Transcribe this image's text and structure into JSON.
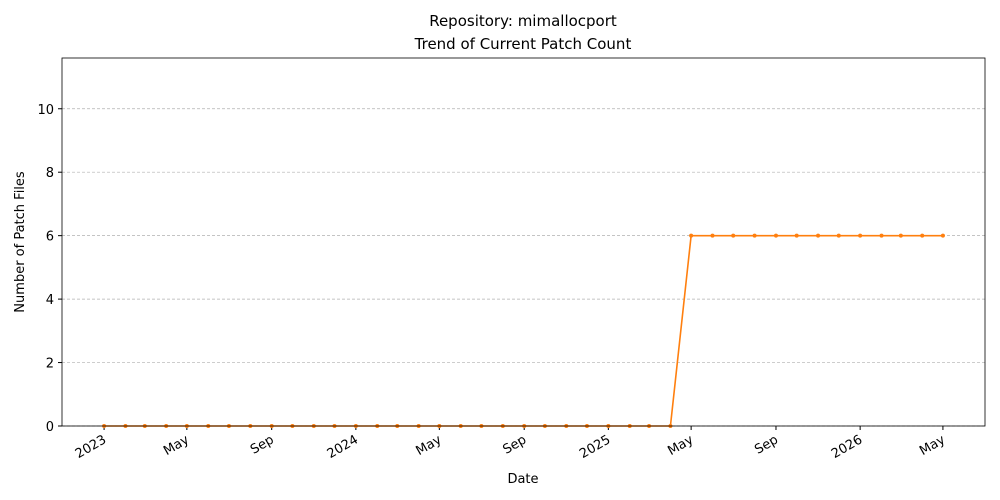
{
  "chart_data": {
    "type": "line",
    "title": "Repository: mimallocport",
    "subtitle": "Trend of Current Patch Count",
    "x_label": "Date",
    "y_label": "Number of Patch Files",
    "x": [
      "2023-01",
      "2023-02",
      "2023-03",
      "2023-04",
      "2023-05",
      "2023-06",
      "2023-07",
      "2023-08",
      "2023-09",
      "2023-10",
      "2023-11",
      "2023-12",
      "2024-01",
      "2024-02",
      "2024-03",
      "2024-04",
      "2024-05",
      "2024-06",
      "2024-07",
      "2024-08",
      "2024-09",
      "2024-10",
      "2024-11",
      "2024-12",
      "2025-01",
      "2025-02",
      "2025-03",
      "2025-04",
      "2025-05",
      "2025-06",
      "2025-07",
      "2025-08",
      "2025-09",
      "2025-10",
      "2025-11",
      "2025-12",
      "2026-01",
      "2026-02",
      "2026-03",
      "2026-04",
      "2026-05"
    ],
    "series": [
      {
        "name": "Patch Count",
        "color": "#ff7f0e",
        "values": [
          0,
          0,
          0,
          0,
          0,
          0,
          0,
          0,
          0,
          0,
          0,
          0,
          0,
          0,
          0,
          0,
          0,
          0,
          0,
          0,
          0,
          0,
          0,
          0,
          0,
          0,
          0,
          0,
          6,
          6,
          6,
          6,
          6,
          6,
          6,
          6,
          6,
          6,
          6,
          6,
          6
        ]
      }
    ],
    "xlim": [
      "2022-11-01",
      "2026-07-01"
    ],
    "xticks": [
      {
        "value": "2023-01",
        "label": "2023"
      },
      {
        "value": "2023-05",
        "label": "May"
      },
      {
        "value": "2023-09",
        "label": "Sep"
      },
      {
        "value": "2024-01",
        "label": "2024"
      },
      {
        "value": "2024-05",
        "label": "May"
      },
      {
        "value": "2024-09",
        "label": "Sep"
      },
      {
        "value": "2025-01",
        "label": "2025"
      },
      {
        "value": "2025-05",
        "label": "May"
      },
      {
        "value": "2025-09",
        "label": "Sep"
      },
      {
        "value": "2026-01",
        "label": "2026"
      },
      {
        "value": "2026-05",
        "label": "May"
      }
    ],
    "ylim": [
      0,
      11.6
    ],
    "yticks": [
      0,
      2,
      4,
      6,
      8,
      10
    ],
    "grid": true
  }
}
